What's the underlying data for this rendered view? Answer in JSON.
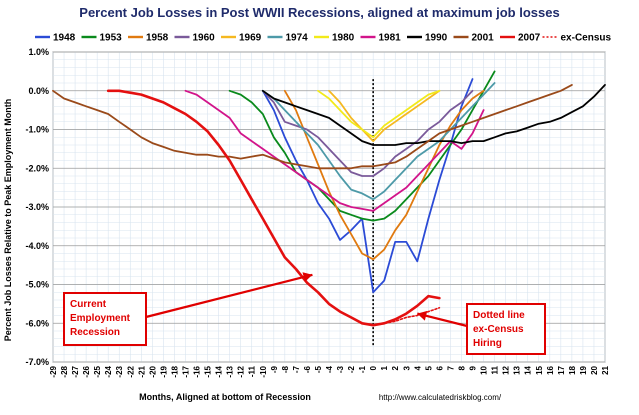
{
  "chart_data": {
    "type": "line",
    "title": "Percent Job Losses in Post WWII Recessions, aligned at maximum job losses",
    "xlabel": "Months, Aligned at bottom of Recession",
    "ylabel": "Percent Job Losses Relative to Peak Employment Month",
    "source": "http://www.calculatedriskblog.com/",
    "xlim": [
      -29,
      21
    ],
    "ylim": [
      -7.0,
      1.0
    ],
    "y_ticks": [
      "1.0%",
      "0.0%",
      "-1.0%",
      "-2.0%",
      "-3.0%",
      "-4.0%",
      "-5.0%",
      "-6.0%",
      "-7.0%"
    ],
    "y_tick_values": [
      1,
      0,
      -1,
      -2,
      -3,
      -4,
      -5,
      -6,
      -7
    ],
    "x_ticks": [
      "-29",
      "-28",
      "-27",
      "-26",
      "-25",
      "-24",
      "-23",
      "-22",
      "-21",
      "-20",
      "-19",
      "-18",
      "-17",
      "-16",
      "-15",
      "-14",
      "-13",
      "-12",
      "-11",
      "-10",
      "-9",
      "-8",
      "-7",
      "-6",
      "-5",
      "-4",
      "-3",
      "-2",
      "-1",
      "0",
      "1",
      "2",
      "3",
      "4",
      "5",
      "6",
      "7",
      "8",
      "9",
      "10",
      "11",
      "12",
      "13",
      "14",
      "15",
      "16",
      "17",
      "18",
      "19",
      "20",
      "21"
    ],
    "grid": true,
    "legend_position": "top",
    "series": [
      {
        "name": "1948",
        "color": "#2b4bd6",
        "x": [
          -10,
          -9,
          -8,
          -7,
          -6,
          -5,
          -4,
          -3,
          -2,
          -1,
          0,
          1,
          2,
          3,
          4,
          5,
          6,
          7,
          8,
          9
        ],
        "y": [
          0,
          -0.5,
          -1.2,
          -1.8,
          -2.3,
          -2.9,
          -3.3,
          -3.85,
          -3.6,
          -3.3,
          -5.2,
          -4.9,
          -3.9,
          -3.9,
          -4.4,
          -3.3,
          -2.3,
          -1.4,
          -0.4,
          0.3
        ]
      },
      {
        "name": "1953",
        "color": "#0a8a1c",
        "x": [
          -13,
          -12,
          -11,
          -10,
          -9,
          -8,
          -7,
          -6,
          -5,
          -4,
          -3,
          -2,
          -1,
          0,
          1,
          2,
          3,
          4,
          5,
          6,
          7,
          8,
          9,
          10,
          11
        ],
        "y": [
          0,
          -0.1,
          -0.3,
          -0.6,
          -1.2,
          -1.6,
          -2.1,
          -2.3,
          -2.5,
          -2.8,
          -3.1,
          -3.2,
          -3.3,
          -3.35,
          -3.3,
          -3.1,
          -2.8,
          -2.5,
          -2.2,
          -1.8,
          -1.4,
          -1.0,
          -0.5,
          0,
          0.5
        ]
      },
      {
        "name": "1958",
        "color": "#e07a10",
        "x": [
          -8,
          -7,
          -6,
          -5,
          -4,
          -3,
          -2,
          -1,
          0,
          1,
          2,
          3,
          4,
          5,
          6,
          7,
          8,
          9,
          10
        ],
        "y": [
          0,
          -0.5,
          -1.2,
          -1.9,
          -2.6,
          -3.2,
          -3.7,
          -4.2,
          -4.35,
          -4.1,
          -3.6,
          -3.2,
          -2.6,
          -2.0,
          -1.4,
          -0.9,
          -0.5,
          -0.2,
          0
        ]
      },
      {
        "name": "1960",
        "color": "#7a5a9a",
        "x": [
          -10,
          -9,
          -8,
          -7,
          -6,
          -5,
          -4,
          -3,
          -2,
          -1,
          0,
          1,
          2,
          3,
          4,
          5,
          6,
          7,
          8,
          9
        ],
        "y": [
          0,
          -0.3,
          -0.8,
          -0.9,
          -1.0,
          -1.2,
          -1.5,
          -1.8,
          -2.1,
          -2.2,
          -2.2,
          -2.0,
          -1.7,
          -1.5,
          -1.3,
          -1.0,
          -0.8,
          -0.5,
          -0.3,
          0
        ]
      },
      {
        "name": "1969",
        "color": "#f5b820",
        "x": [
          -4,
          -3,
          -2,
          -1,
          0,
          1,
          2,
          3,
          4,
          5,
          6
        ],
        "y": [
          0,
          -0.3,
          -0.7,
          -1.0,
          -1.3,
          -1.0,
          -0.8,
          -0.6,
          -0.4,
          -0.2,
          0
        ]
      },
      {
        "name": "1974",
        "color": "#4d9aa8",
        "x": [
          -10,
          -9,
          -8,
          -7,
          -6,
          -5,
          -4,
          -3,
          -2,
          -1,
          0,
          1,
          2,
          3,
          4,
          5,
          6,
          7,
          8,
          9,
          10,
          11
        ],
        "y": [
          0,
          -0.2,
          -0.5,
          -0.8,
          -1.1,
          -1.4,
          -1.8,
          -2.2,
          -2.55,
          -2.65,
          -2.8,
          -2.6,
          -2.3,
          -2.0,
          -1.7,
          -1.5,
          -1.3,
          -1.0,
          -0.7,
          -0.4,
          -0.1,
          0.2
        ]
      },
      {
        "name": "1980",
        "color": "#f2ea1a",
        "x": [
          -5,
          -4,
          -3,
          -2,
          -1,
          0,
          1,
          2,
          3,
          4,
          5,
          6
        ],
        "y": [
          0,
          -0.2,
          -0.5,
          -0.8,
          -1.0,
          -1.2,
          -0.9,
          -0.7,
          -0.5,
          -0.3,
          -0.1,
          0
        ]
      },
      {
        "name": "1981",
        "color": "#d2148a",
        "x": [
          -17,
          -16,
          -15,
          -14,
          -13,
          -12,
          -11,
          -10,
          -9,
          -8,
          -7,
          -6,
          -5,
          -4,
          -3,
          -2,
          -1,
          0,
          1,
          2,
          3,
          4,
          5,
          6,
          7,
          8,
          9,
          10
        ],
        "y": [
          0,
          -0.1,
          -0.3,
          -0.5,
          -0.7,
          -1.1,
          -1.3,
          -1.5,
          -1.7,
          -1.9,
          -2.1,
          -2.3,
          -2.5,
          -2.7,
          -2.9,
          -3.0,
          -3.05,
          -3.1,
          -2.9,
          -2.7,
          -2.5,
          -2.2,
          -1.9,
          -1.6,
          -1.3,
          -1.5,
          -1.1,
          -0.5
        ]
      },
      {
        "name": "1990",
        "color": "#000000",
        "x": [
          -10,
          -9,
          -8,
          -7,
          -6,
          -5,
          -4,
          -3,
          -2,
          -1,
          0,
          1,
          2,
          3,
          4,
          5,
          6,
          7,
          8,
          9,
          10,
          11,
          12,
          13,
          14,
          15,
          16,
          17,
          18,
          19,
          20,
          21
        ],
        "y": [
          0,
          -0.2,
          -0.3,
          -0.4,
          -0.5,
          -0.6,
          -0.7,
          -0.9,
          -1.1,
          -1.3,
          -1.4,
          -1.4,
          -1.4,
          -1.35,
          -1.35,
          -1.3,
          -1.3,
          -1.3,
          -1.35,
          -1.3,
          -1.3,
          -1.2,
          -1.1,
          -1.05,
          -0.95,
          -0.85,
          -0.8,
          -0.7,
          -0.55,
          -0.4,
          -0.15,
          0.15
        ]
      },
      {
        "name": "2001",
        "color": "#9a4a1a",
        "x": [
          -29,
          -28,
          -27,
          -26,
          -25,
          -24,
          -23,
          -22,
          -21,
          -20,
          -19,
          -18,
          -17,
          -16,
          -15,
          -14,
          -13,
          -12,
          -11,
          -10,
          -9,
          -8,
          -7,
          -6,
          -5,
          -4,
          -3,
          -2,
          -1,
          0,
          1,
          2,
          3,
          4,
          5,
          6,
          7,
          8,
          9,
          10,
          11,
          12,
          13,
          14,
          15,
          16,
          17,
          18
        ],
        "y": [
          0,
          -0.2,
          -0.3,
          -0.4,
          -0.5,
          -0.6,
          -0.8,
          -1.0,
          -1.2,
          -1.35,
          -1.45,
          -1.55,
          -1.6,
          -1.65,
          -1.65,
          -1.7,
          -1.7,
          -1.75,
          -1.7,
          -1.65,
          -1.75,
          -1.85,
          -1.9,
          -1.95,
          -2.0,
          -2.0,
          -2.0,
          -2.0,
          -1.95,
          -1.95,
          -1.9,
          -1.85,
          -1.7,
          -1.5,
          -1.3,
          -1.1,
          -1.0,
          -0.9,
          -0.8,
          -0.7,
          -0.6,
          -0.5,
          -0.4,
          -0.3,
          -0.2,
          -0.1,
          0,
          0.15
        ]
      },
      {
        "name": "2007",
        "color": "#e41010",
        "x": [
          -24,
          -23,
          -22,
          -21,
          -20,
          -19,
          -18,
          -17,
          -16,
          -15,
          -14,
          -13,
          -12,
          -11,
          -10,
          -9,
          -8,
          -7,
          -6,
          -5,
          -4,
          -3,
          -2,
          -1,
          0,
          1,
          2,
          3,
          4,
          5,
          6
        ],
        "y": [
          0,
          0,
          -0.05,
          -0.1,
          -0.2,
          -0.3,
          -0.45,
          -0.6,
          -0.8,
          -1.05,
          -1.4,
          -1.8,
          -2.3,
          -2.8,
          -3.3,
          -3.8,
          -4.3,
          -4.6,
          -4.95,
          -5.2,
          -5.5,
          -5.7,
          -5.85,
          -6.0,
          -6.05,
          -6.0,
          -5.9,
          -5.75,
          -5.55,
          -5.3,
          -5.35
        ]
      },
      {
        "name": "ex-Census",
        "color": "#e41010",
        "dashed": true,
        "x": [
          0,
          1,
          2,
          3,
          4,
          5,
          6
        ],
        "y": [
          -6.05,
          -6.0,
          -5.95,
          -5.85,
          -5.8,
          -5.7,
          -5.6
        ]
      }
    ],
    "annotations": [
      {
        "lines": [
          "Current",
          "Employment",
          "Recession"
        ],
        "arrow_to": {
          "x": -5.5,
          "y": -4.75
        }
      },
      {
        "lines": [
          "Dotted line",
          "ex-Census",
          "Hiring"
        ],
        "arrow_to": {
          "x": 4,
          "y": -5.75
        }
      }
    ]
  }
}
